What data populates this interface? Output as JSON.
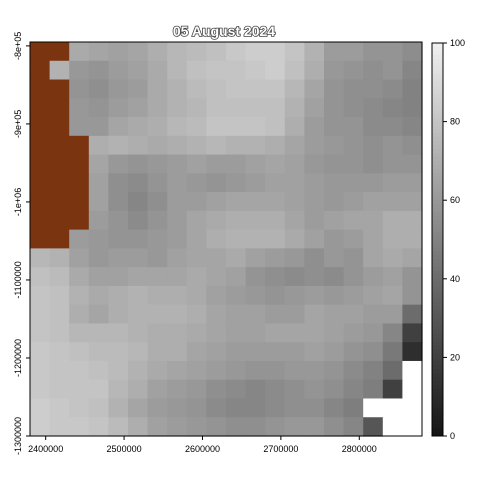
{
  "title": "05 August 2024",
  "chart_data": {
    "type": "heatmap",
    "title": "05 August 2024",
    "xlabel": "",
    "ylabel": "",
    "x_ticks": [
      {
        "label": "2400000",
        "value": 2400000
      },
      {
        "label": "2500000",
        "value": 2500000
      },
      {
        "label": "2600000",
        "value": 2600000
      },
      {
        "label": "2700000",
        "value": 2700000
      },
      {
        "label": "2800000",
        "value": 2800000
      }
    ],
    "y_ticks": [
      {
        "label": "-8e+05",
        "value": -800000
      },
      {
        "label": "-9e+05",
        "value": -900000
      },
      {
        "label": "-1e+06",
        "value": -1000000
      },
      {
        "label": "-1100000",
        "value": -1100000
      },
      {
        "label": "-1200000",
        "value": -1200000
      },
      {
        "label": "-1300000",
        "value": -1300000
      }
    ],
    "xlim": [
      2380000,
      2880000
    ],
    "ylim": [
      -1300000,
      -795000
    ],
    "grid_cell_size": 25000,
    "legend": {
      "position": "right",
      "colormap": "grayscale",
      "range": [
        0,
        100
      ],
      "ticks": [
        {
          "label": "0",
          "value": 0
        },
        {
          "label": "20",
          "value": 20
        },
        {
          "label": "40",
          "value": 40
        },
        {
          "label": "60",
          "value": 60
        },
        {
          "label": "80",
          "value": 80
        },
        {
          "label": "100",
          "value": 100
        }
      ]
    },
    "special_colors": {
      "masked_land": "#7b3410",
      "no_data": "#ffffff"
    },
    "cell_value_legend": "M = masked region (brown), N = no data (white), numbers = value 0-100",
    "rows_top_to_bottom": [
      [
        "M",
        "M",
        68,
        66,
        64,
        66,
        70,
        74,
        76,
        78,
        82,
        84,
        84,
        80,
        72,
        62,
        62,
        58,
        58,
        55
      ],
      [
        "M",
        72,
        60,
        58,
        62,
        64,
        68,
        74,
        78,
        80,
        80,
        82,
        84,
        78,
        70,
        60,
        58,
        56,
        58,
        52
      ],
      [
        "M",
        "M",
        58,
        56,
        60,
        62,
        68,
        72,
        76,
        78,
        80,
        80,
        80,
        74,
        66,
        58,
        56,
        56,
        54,
        50
      ],
      [
        "M",
        "M",
        60,
        58,
        62,
        64,
        68,
        72,
        74,
        78,
        78,
        78,
        78,
        72,
        64,
        58,
        56,
        54,
        52,
        50
      ],
      [
        "M",
        "M",
        60,
        60,
        66,
        68,
        70,
        74,
        76,
        80,
        80,
        80,
        78,
        70,
        62,
        58,
        58,
        54,
        54,
        52
      ],
      [
        "M",
        "M",
        "M",
        70,
        72,
        70,
        68,
        70,
        72,
        74,
        72,
        72,
        70,
        66,
        62,
        60,
        58,
        56,
        58,
        56
      ],
      [
        "M",
        "M",
        "M",
        66,
        60,
        58,
        60,
        62,
        64,
        62,
        62,
        64,
        66,
        64,
        60,
        58,
        58,
        56,
        58,
        58
      ],
      [
        "M",
        "M",
        "M",
        64,
        56,
        54,
        58,
        62,
        60,
        58,
        60,
        62,
        64,
        64,
        62,
        60,
        60,
        60,
        62,
        62
      ],
      [
        "M",
        "M",
        "M",
        64,
        56,
        52,
        56,
        62,
        62,
        64,
        66,
        66,
        66,
        64,
        62,
        60,
        62,
        64,
        64,
        64
      ],
      [
        "M",
        "M",
        "M",
        62,
        58,
        54,
        58,
        62,
        66,
        68,
        70,
        70,
        70,
        66,
        62,
        64,
        66,
        66,
        70,
        70
      ],
      [
        "M",
        "M",
        62,
        60,
        58,
        58,
        60,
        62,
        66,
        70,
        72,
        72,
        72,
        68,
        64,
        60,
        62,
        66,
        70,
        70
      ],
      [
        74,
        72,
        64,
        60,
        62,
        62,
        60,
        64,
        66,
        66,
        68,
        64,
        62,
        60,
        56,
        60,
        58,
        66,
        68,
        66
      ],
      [
        78,
        76,
        68,
        64,
        64,
        66,
        66,
        66,
        68,
        66,
        64,
        58,
        56,
        54,
        56,
        54,
        58,
        62,
        64,
        58
      ],
      [
        80,
        78,
        72,
        68,
        70,
        72,
        70,
        70,
        68,
        64,
        62,
        60,
        58,
        60,
        62,
        60,
        62,
        64,
        66,
        58
      ],
      [
        80,
        78,
        70,
        66,
        70,
        72,
        72,
        72,
        70,
        66,
        64,
        64,
        62,
        62,
        66,
        64,
        64,
        62,
        62,
        40
      ],
      [
        80,
        78,
        74,
        74,
        74,
        72,
        70,
        70,
        68,
        66,
        64,
        64,
        66,
        66,
        66,
        64,
        62,
        60,
        52,
        20
      ],
      [
        82,
        80,
        78,
        76,
        76,
        74,
        70,
        70,
        66,
        64,
        62,
        62,
        62,
        62,
        64,
        62,
        58,
        56,
        46,
        12
      ],
      [
        82,
        80,
        80,
        78,
        76,
        72,
        68,
        66,
        64,
        62,
        60,
        58,
        58,
        60,
        60,
        58,
        54,
        50,
        40,
        "N"
      ],
      [
        82,
        80,
        80,
        80,
        74,
        70,
        64,
        62,
        60,
        56,
        54,
        52,
        54,
        56,
        58,
        56,
        52,
        48,
        20,
        "N"
      ],
      [
        84,
        82,
        80,
        78,
        72,
        66,
        62,
        60,
        58,
        54,
        52,
        52,
        54,
        56,
        56,
        52,
        48,
        "N",
        "N",
        "N"
      ],
      [
        84,
        82,
        82,
        80,
        76,
        70,
        64,
        62,
        60,
        58,
        56,
        56,
        58,
        60,
        60,
        56,
        52,
        30,
        "N",
        "N"
      ]
    ]
  }
}
